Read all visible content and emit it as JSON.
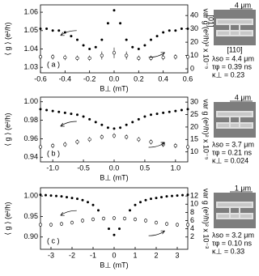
{
  "chart_data": [
    {
      "type": "scatter",
      "panel_label": "( a )",
      "xlabel": "B⊥ (mT)",
      "ylabel": "⟨ g ⟩ (e²/h)",
      "y2label": "var g (e²/h)² x 10⁻⁵",
      "xlim": [
        -0.6,
        0.6
      ],
      "xticks": [
        -0.6,
        -0.4,
        -0.2,
        {
          "value": 0,
          "label": "0.0"
        },
        0.2,
        0.4,
        0.6
      ],
      "ylim": [
        1.027,
        1.064
      ],
      "yticks": [
        1.03,
        1.04,
        1.05,
        1.06
      ],
      "y2lim": [
        -3,
        48
      ],
      "y2ticks": [
        0,
        10,
        20,
        30,
        40
      ],
      "inset": {
        "scale": "4 μm",
        "axes": [
          "[01]",
          "[110]"
        ],
        "params": [
          "λso = 4.4 μm",
          "τφ = 0.39 ns",
          "κ⊥ = 0.23"
        ]
      },
      "series": [
        {
          "color": "#000000",
          "x": [
            -0.6,
            -0.55,
            -0.5,
            -0.45,
            -0.4,
            -0.35,
            -0.3,
            -0.25,
            -0.2,
            -0.15,
            -0.1,
            -0.05,
            0,
            0.05,
            0.1,
            0.15,
            0.2,
            0.25,
            0.3,
            0.35,
            0.4,
            0.45,
            0.5,
            0.55,
            0.6
          ],
          "values": [
            1.051,
            1.051,
            1.05,
            1.05,
            1.049,
            1.047,
            1.045,
            1.042,
            1.04,
            1.041,
            1.045,
            1.054,
            1.061,
            1.054,
            1.045,
            1.041,
            1.04,
            1.042,
            1.045,
            1.047,
            1.049,
            1.05,
            1.05,
            1.051,
            1.051
          ]
        },
        {
          "color": "#000000",
          "axis": "y2",
          "x": [
            -0.6,
            -0.5,
            -0.4,
            -0.3,
            -0.2,
            -0.1,
            0,
            0.1,
            0.2,
            0.3,
            0.4,
            0.5,
            0.6
          ],
          "values": [
            9,
            9,
            8.5,
            8,
            8,
            10,
            12,
            10,
            8,
            8,
            8.5,
            9,
            9
          ],
          "errors": [
            2,
            2,
            2,
            2,
            2,
            3,
            4,
            3,
            2,
            2,
            2,
            2,
            2
          ]
        }
      ]
    },
    {
      "type": "scatter",
      "panel_label": "( b )",
      "xlabel": "B⊥ (mT)",
      "ylabel": "⟨ g ⟩ (e²/h)",
      "y2label": "var g (e²/h)² x 10⁻⁵",
      "xlim": [
        -1.2,
        1.2
      ],
      "xticks": [
        {
          "value": -1,
          "label": "-1.0"
        },
        -0.5,
        {
          "value": 0,
          "label": "0.0"
        },
        0.5,
        {
          "value": 1,
          "label": "1.0"
        }
      ],
      "ylim": [
        0.935,
        1.005
      ],
      "yticks": [
        0.94,
        0.96,
        0.98,
        {
          "value": 1,
          "label": "1.00"
        }
      ],
      "y2lim": [
        6,
        32
      ],
      "y2ticks": [
        10,
        15,
        20,
        25,
        30
      ],
      "inset": {
        "scale": "4 μm",
        "params": [
          "λso = 3.7 μm",
          "τφ = 0.21 ns",
          "κ⊥ = 0.024"
        ]
      },
      "series": [
        {
          "color": "#000000",
          "x": [
            -1.2,
            -1.1,
            -1,
            -0.9,
            -0.8,
            -0.7,
            -0.6,
            -0.5,
            -0.4,
            -0.3,
            -0.2,
            -0.1,
            0,
            0.1,
            0.2,
            0.3,
            0.4,
            0.5,
            0.6,
            0.7,
            0.8,
            0.9,
            1,
            1.1,
            1.2
          ],
          "values": [
            0.992,
            0.991,
            0.99,
            0.989,
            0.988,
            0.987,
            0.986,
            0.984,
            0.981,
            0.978,
            0.975,
            0.972,
            0.971,
            0.972,
            0.975,
            0.978,
            0.981,
            0.984,
            0.986,
            0.987,
            0.988,
            0.989,
            0.99,
            0.991,
            0.992
          ]
        },
        {
          "color": "#000000",
          "axis": "y2",
          "x": [
            -1.2,
            -1,
            -0.8,
            -0.6,
            -0.4,
            -0.2,
            0,
            0.2,
            0.4,
            0.6,
            0.8,
            1,
            1.2
          ],
          "values": [
            12,
            12.5,
            13,
            14,
            15,
            16,
            16.5,
            16,
            15,
            14,
            13,
            12.5,
            12
          ],
          "errors": [
            1,
            1,
            1,
            1,
            1,
            1,
            1,
            1,
            1,
            1,
            1,
            1,
            1
          ]
        }
      ]
    },
    {
      "type": "scatter",
      "panel_label": "( c )",
      "xlabel": "B⊥ (mT)",
      "ylabel": "⟨ g ⟩ (e²/h)",
      "y2label": "var g (e²/h)² x 10⁻³",
      "xlim": [
        -3.5,
        3.5
      ],
      "xticks": [
        -3,
        -2,
        -1,
        0,
        1,
        2,
        3
      ],
      "ylim": [
        0.87,
        1.02
      ],
      "yticks": [
        {
          "value": 0.9,
          "label": "0.90"
        },
        0.95,
        {
          "value": 1,
          "label": "1.00"
        }
      ],
      "y2lim": [
        -1,
        14
      ],
      "y2ticks": [
        2,
        4,
        6,
        8,
        10,
        12
      ],
      "inset": {
        "scale": "1 μm",
        "params": [
          "λso = 3.2 μm",
          "τφ = 0.10 ns",
          "κ⊥ = 0.33"
        ]
      },
      "series": [
        {
          "color": "#000000",
          "x": [
            -3.5,
            -3.25,
            -3,
            -2.75,
            -2.5,
            -2.25,
            -2,
            -1.75,
            -1.5,
            -1.25,
            -1,
            -0.75,
            -0.5,
            -0.25,
            0,
            0.25,
            0.5,
            0.75,
            1,
            1.25,
            1.5,
            1.75,
            2,
            2.25,
            2.5,
            2.75,
            3,
            3.25,
            3.5
          ],
          "values": [
            1.003,
            1.002,
            1.001,
            1,
            0.999,
            0.997,
            0.995,
            0.993,
            0.99,
            0.985,
            0.978,
            0.965,
            0.945,
            0.92,
            0.905,
            0.92,
            0.945,
            0.965,
            0.978,
            0.985,
            0.99,
            0.993,
            0.995,
            0.997,
            0.999,
            1,
            1.001,
            1.002,
            1.003
          ]
        },
        {
          "color": "#000000",
          "axis": "y2",
          "x": [
            -3.5,
            -3,
            -2.5,
            -2,
            -1.5,
            -1,
            -0.5,
            0,
            0.5,
            1,
            1.5,
            2,
            2.5,
            3,
            3.5
          ],
          "values": [
            5,
            5,
            5.2,
            5.5,
            6,
            6.3,
            6.5,
            6.6,
            6.5,
            6.3,
            6,
            5.5,
            5.2,
            5,
            5
          ],
          "errors": [
            0.5,
            0.5,
            0.5,
            0.5,
            0.5,
            0.5,
            0.5,
            0.5,
            0.5,
            0.5,
            0.5,
            0.5,
            0.5,
            0.5,
            0.5
          ]
        }
      ]
    }
  ]
}
